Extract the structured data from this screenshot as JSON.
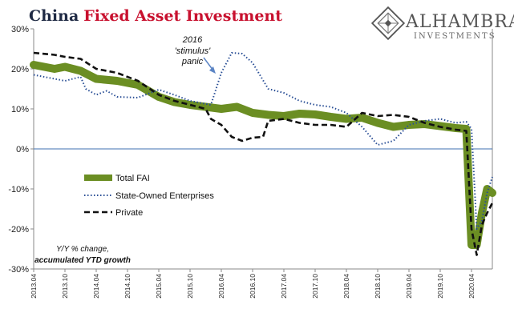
{
  "title": {
    "part1": "China",
    "part2": "Fixed Asset Investment"
  },
  "logo": {
    "name": "ALHAMBRA",
    "sub": "INVESTMENTS"
  },
  "annotation": {
    "line1": "2016",
    "line2": "'stimulus'",
    "line3": "panic"
  },
  "note": {
    "line1": "Y/Y % change,",
    "line2": "accumulated YTD growth"
  },
  "colors": {
    "total": "#6b8e23",
    "soe": "#2a4f96",
    "private": "#111111",
    "zero": "#3e6fb0",
    "arrow": "#5b84c4"
  },
  "chart_data": {
    "type": "line",
    "ylim": [
      -30,
      30
    ],
    "yticks": [
      "30%",
      "20%",
      "10%",
      "0%",
      "-10%",
      "-20%",
      "-30%"
    ],
    "xlim": [
      0,
      88
    ],
    "x_tick_labels": [
      "2013.04",
      "2013.10",
      "2014.04",
      "2014.10",
      "2015.04",
      "2015.10",
      "2016.04",
      "2016.10",
      "2017.04",
      "2017.10",
      "2018.04",
      "2018.10",
      "2019.04",
      "2019.10",
      "2020.04"
    ],
    "legend_position": "lower-left",
    "series": [
      {
        "name": "Total FAI",
        "style": "thick",
        "x": [
          0,
          4,
          6,
          9,
          12,
          16,
          20,
          24,
          27,
          30,
          33,
          36,
          39,
          42,
          45,
          48,
          51,
          54,
          57,
          60,
          63,
          66,
          69,
          72,
          75,
          78,
          81,
          83,
          84,
          85,
          86,
          87,
          88
        ],
        "y": [
          21,
          20,
          20.5,
          19.5,
          17.5,
          17,
          16,
          13,
          11.7,
          11,
          10.5,
          10,
          10.5,
          9,
          8.5,
          8.2,
          8.8,
          8.6,
          8,
          7.5,
          7.8,
          6.5,
          5.5,
          6,
          6.2,
          5.7,
          5.2,
          5,
          -24,
          -24,
          -16,
          -10,
          -11
        ]
      },
      {
        "name": "State-Owned Enterprises",
        "style": "dotted",
        "x": [
          0,
          4,
          6,
          9,
          10,
          12,
          14,
          16,
          20,
          24,
          27,
          30,
          32,
          34,
          35,
          36,
          38,
          40,
          42,
          45,
          48,
          51,
          54,
          57,
          60,
          63,
          66,
          69,
          72,
          75,
          78,
          81,
          83,
          84,
          85,
          86,
          87,
          88
        ],
        "y": [
          18.5,
          17.5,
          17,
          18,
          15,
          13.5,
          14.5,
          13,
          12.8,
          14.8,
          13.5,
          12,
          11.5,
          11,
          15,
          19,
          24,
          23.8,
          21.5,
          15,
          14,
          12,
          11,
          10.5,
          9,
          5.5,
          1,
          2,
          6,
          7,
          7.5,
          6.5,
          6.8,
          5,
          -20,
          -18,
          -11,
          -7
        ]
      },
      {
        "name": "Private",
        "style": "dashed",
        "x": [
          0,
          4,
          6,
          9,
          12,
          16,
          20,
          24,
          27,
          30,
          33,
          34,
          36,
          38,
          40,
          42,
          44,
          45,
          48,
          51,
          54,
          57,
          60,
          63,
          66,
          69,
          72,
          75,
          78,
          81,
          83,
          84,
          85,
          86,
          87,
          88
        ],
        "y": [
          24,
          23.5,
          23,
          22.5,
          20,
          19,
          17,
          13.5,
          12,
          11,
          10,
          7.5,
          6,
          3,
          2,
          2.8,
          3,
          7,
          7.5,
          6.5,
          6,
          6,
          5.5,
          9,
          8.2,
          8.5,
          8,
          6.5,
          5.5,
          4.8,
          4.5,
          -20,
          -26.5,
          -19,
          -16,
          -13.5
        ]
      }
    ],
    "annotations": [
      {
        "text": "2016 'stimulus' panic",
        "points_to": {
          "x": 33.5,
          "y": 19
        }
      }
    ]
  }
}
